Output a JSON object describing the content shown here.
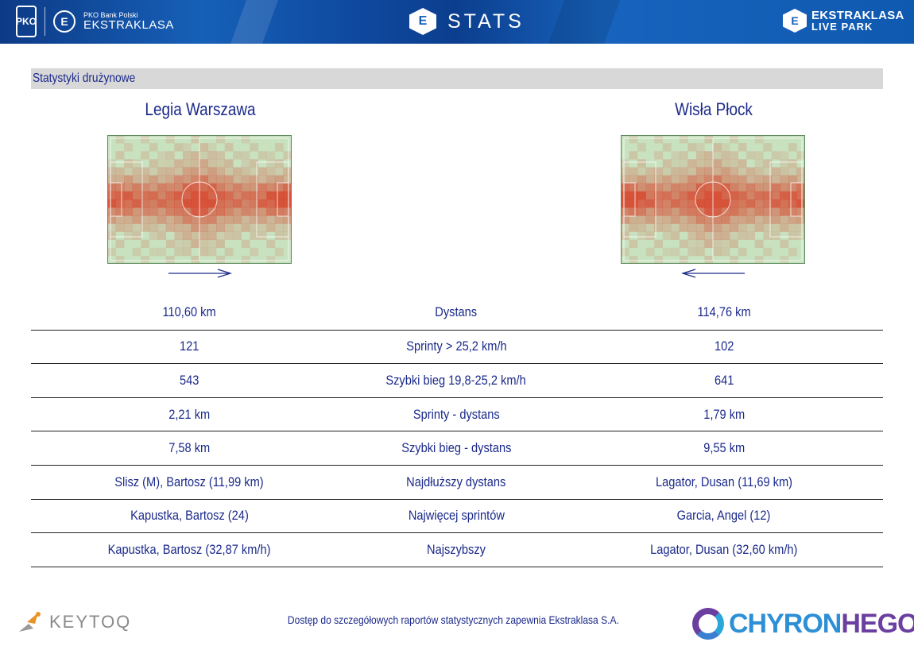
{
  "header": {
    "pko_mark": "PKO",
    "league_small": "PKO Bank Polski",
    "league_big": "EKSTRAKLASA",
    "stats_word": "STATS",
    "livepark_a": "EKSTRAKLASA",
    "livepark_b": "LIVE PARK",
    "hex_glyph": "E"
  },
  "section_title": "Statystyki drużynowe",
  "teams": {
    "home": {
      "name": "Legia Warszawa",
      "attack_direction": "right"
    },
    "away": {
      "name": "Wisła Płock",
      "attack_direction": "left"
    }
  },
  "stats": [
    {
      "label": "Dystans",
      "home": "110,60 km",
      "away": "114,76 km"
    },
    {
      "label": "Sprinty > 25,2 km/h",
      "home": "121",
      "away": "102"
    },
    {
      "label": "Szybki bieg 19,8-25,2 km/h",
      "home": "543",
      "away": "641"
    },
    {
      "label": "Sprinty - dystans",
      "home": "2,21 km",
      "away": "1,79 km"
    },
    {
      "label": "Szybki bieg - dystans",
      "home": "7,58 km",
      "away": "9,55 km"
    },
    {
      "label": "Najdłuższy dystans",
      "home": "Slisz (M), Bartosz (11,99 km)",
      "away": "Lagator, Dusan (11,69 km)"
    },
    {
      "label": "Najwięcej sprintów",
      "home": "Kapustka, Bartosz (24)",
      "away": "Garcia, Angel (12)"
    },
    {
      "label": "Najszybszy",
      "home": "Kapustka, Bartosz (32,87 km/h)",
      "away": "Lagator, Dusan (32,60 km/h)"
    }
  ],
  "footer": {
    "left_brand": "KEYTOQ",
    "note": "Dostęp do szczegółowych raportów statystycznych zapewnia Ekstraklasa S.A.",
    "right_brand_a": "CHYRON",
    "right_brand_b": "HEGO"
  },
  "colors": {
    "text": "#1b2a8a",
    "pitch": "#c8e2c0",
    "heat": "#d83a22",
    "row_border": "#222222"
  }
}
